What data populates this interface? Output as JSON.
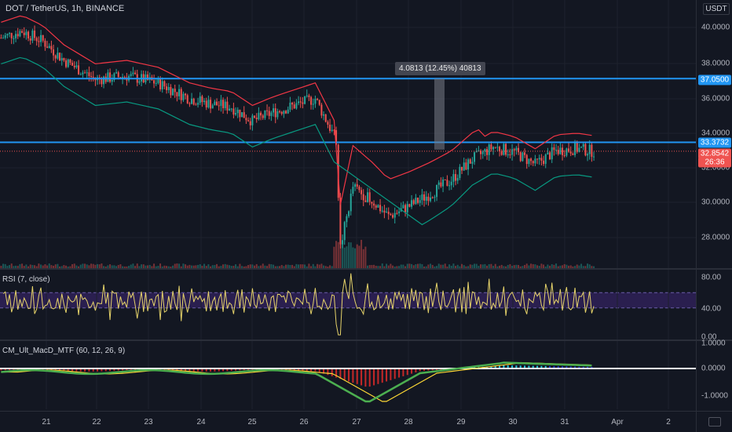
{
  "chart_header": {
    "symbol_title": "DOT / TetherUS, 1h, BINANCE",
    "currency_button": "USDT"
  },
  "main_axis": {
    "ticks": [
      "40.0000",
      "38.0000",
      "36.0000",
      "34.0000",
      "32.0000",
      "30.0000",
      "28.0000"
    ],
    "labels": [
      {
        "text": "37.0500",
        "color": "#2196f3"
      },
      {
        "text": "33.3732",
        "color": "#2196f3"
      },
      {
        "text": "32.8542",
        "color": "#ef5350"
      },
      {
        "text": "26:36",
        "color": "#ef5350"
      }
    ]
  },
  "measure_tool": {
    "label": "4.0813 (12.45%) 40813"
  },
  "rsi": {
    "label": "RSI (7, close)",
    "ticks": [
      "80.00",
      "40.00",
      "0.00"
    ]
  },
  "macd": {
    "label": "CM_Ult_MacD_MTF (60, 12, 26, 9)",
    "ticks": [
      "1.0000",
      "0.0000",
      "-1.0000"
    ]
  },
  "time_axis": {
    "ticks": [
      "21",
      "22",
      "23",
      "24",
      "25",
      "26",
      "27",
      "28",
      "29",
      "30",
      "31",
      "Apr",
      "2"
    ]
  },
  "colors": {
    "background": "#131722",
    "up_candle": "#26a69a",
    "down_candle": "#ef5350",
    "horizontal_line": "#2196f3",
    "rsi_line": "#e6d36a",
    "rsi_band": "#2a1f4f",
    "macd_up": "#4caf50",
    "macd_down": "#e53935"
  }
}
